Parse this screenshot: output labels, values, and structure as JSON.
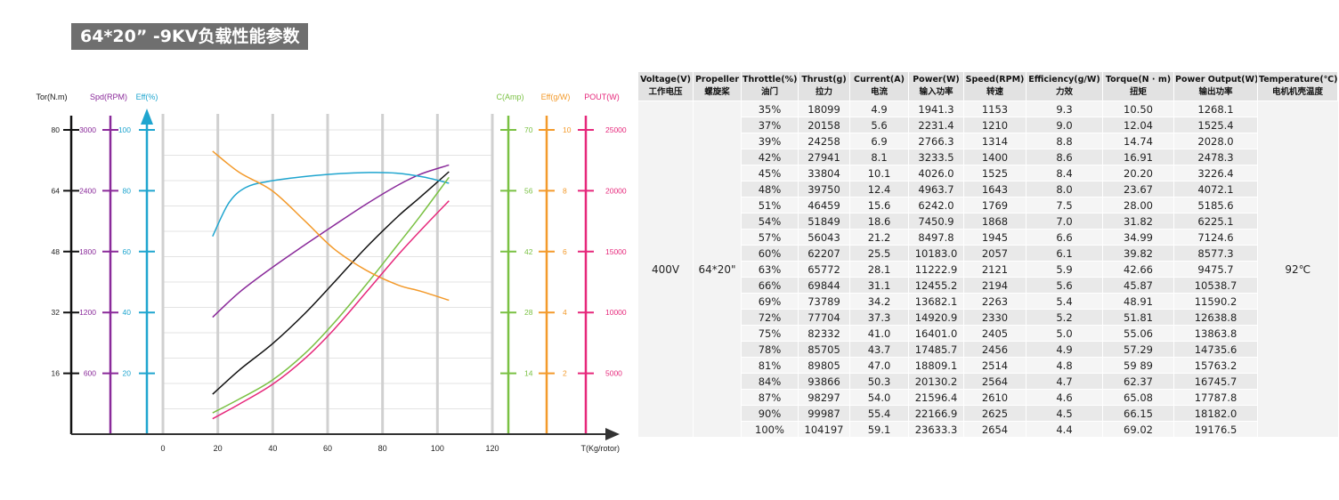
{
  "title": "64*20” -9KV负载性能参数",
  "chart_data": {
    "type": "line",
    "xlabel": "T(Kg/rotor)",
    "xlim": [
      0,
      120
    ],
    "x_ticks": [
      "0",
      "20",
      "40",
      "60",
      "80",
      "100",
      "120"
    ],
    "axes": [
      {
        "key": "tor",
        "label": "Tor(N.m)",
        "color": "#111111",
        "max": 80,
        "ticks": [
          "16",
          "32",
          "48",
          "64",
          "80"
        ]
      },
      {
        "key": "spd",
        "label": "Spd(RPM)",
        "color": "#8a2a9a",
        "max": 3000,
        "ticks": [
          "600",
          "1200",
          "1800",
          "2400",
          "3000"
        ]
      },
      {
        "key": "eff",
        "label": "Eff(%)",
        "color": "#1fa5cf",
        "max": 100,
        "ticks": [
          "20",
          "40",
          "60",
          "80",
          "100"
        ]
      },
      {
        "key": "amp",
        "label": "C(Amp)",
        "color": "#7ac143",
        "max": 70,
        "ticks": [
          "14",
          "28",
          "42",
          "56",
          "70"
        ]
      },
      {
        "key": "effg",
        "label": "Eff(g/W)",
        "color": "#f39a2b",
        "max": 10,
        "ticks": [
          "2",
          "4",
          "6",
          "8",
          "10"
        ]
      },
      {
        "key": "pout",
        "label": "POUT(W)",
        "color": "#e6287b",
        "max": 25000,
        "ticks": [
          "5000",
          "10000",
          "15000",
          "20000",
          "25000"
        ]
      }
    ],
    "series": [
      {
        "axis": "tor",
        "color": "#111111",
        "x": [
          18.1,
          27.9,
          39.8,
          51.8,
          62.2,
          73.8,
          85.7,
          93.9,
          104.2
        ],
        "y": [
          10.5,
          16.9,
          23.7,
          31.8,
          39.8,
          48.9,
          57.3,
          62.4,
          69.0
        ]
      },
      {
        "axis": "spd",
        "color": "#8a2a9a",
        "x": [
          18.1,
          27.9,
          39.8,
          51.8,
          62.2,
          73.8,
          85.7,
          93.9,
          104.2
        ],
        "y": [
          1153,
          1400,
          1643,
          1868,
          2057,
          2263,
          2456,
          2564,
          2654
        ]
      },
      {
        "axis": "eff",
        "color": "#1fa5cf",
        "x": [
          18.1,
          24,
          30,
          38,
          50,
          62,
          75,
          85,
          95,
          104.2
        ],
        "y": [
          65,
          76,
          81,
          83,
          84.5,
          85.5,
          86,
          85.8,
          84.5,
          82.5
        ]
      },
      {
        "axis": "amp",
        "color": "#7ac143",
        "x": [
          18.1,
          27.9,
          39.8,
          51.8,
          62.2,
          73.8,
          85.7,
          93.9,
          104.2
        ],
        "y": [
          4.9,
          8.1,
          12.4,
          18.6,
          25.5,
          34.2,
          43.7,
          50.3,
          59.1
        ]
      },
      {
        "axis": "effg",
        "color": "#f39a2b",
        "x": [
          18.1,
          27.9,
          39.8,
          51.8,
          62.2,
          73.8,
          85.7,
          93.9,
          104.2
        ],
        "y": [
          9.3,
          8.6,
          8.0,
          7.0,
          6.1,
          5.4,
          4.9,
          4.7,
          4.4
        ]
      },
      {
        "axis": "pout",
        "color": "#e6287b",
        "x": [
          18.1,
          27.9,
          39.8,
          51.8,
          62.2,
          73.8,
          85.7,
          93.9,
          104.2
        ],
        "y": [
          1268.1,
          2478.3,
          4072.1,
          6225.1,
          8577.3,
          11590.2,
          14735.6,
          16745.7,
          19176.5
        ]
      }
    ]
  },
  "table": {
    "headers": [
      {
        "en": "Voltage(V)",
        "cn": "工作电压"
      },
      {
        "en": "Propeller",
        "cn": "螺旋桨"
      },
      {
        "en": "Throttle(%)",
        "cn": "油门"
      },
      {
        "en": "Thrust(g)",
        "cn": "拉力"
      },
      {
        "en": "Current(A)",
        "cn": "电流"
      },
      {
        "en": "Power(W)",
        "cn": "输入功率"
      },
      {
        "en": "Speed(RPM)",
        "cn": "转速"
      },
      {
        "en": "Efficiency(g/W)",
        "cn": "力效"
      },
      {
        "en": "Torque(N · m)",
        "cn": "扭矩"
      },
      {
        "en": "Power Output(W)",
        "cn": "输出功率"
      },
      {
        "en": "Temperature(℃)",
        "cn": "电机机壳温度"
      }
    ],
    "voltage": "400V",
    "propeller": "64*20\"",
    "temperature": "92℃",
    "rows": [
      [
        "35%",
        "18099",
        "4.9",
        "1941.3",
        "1153",
        "9.3",
        "10.50",
        "1268.1"
      ],
      [
        "37%",
        "20158",
        "5.6",
        "2231.4",
        "1210",
        "9.0",
        "12.04",
        "1525.4"
      ],
      [
        "39%",
        "24258",
        "6.9",
        "2766.3",
        "1314",
        "8.8",
        "14.74",
        "2028.0"
      ],
      [
        "42%",
        "27941",
        "8.1",
        "3233.5",
        "1400",
        "8.6",
        "16.91",
        "2478.3"
      ],
      [
        "45%",
        "33804",
        "10.1",
        "4026.0",
        "1525",
        "8.4",
        "20.20",
        "3226.4"
      ],
      [
        "48%",
        "39750",
        "12.4",
        "4963.7",
        "1643",
        "8.0",
        "23.67",
        "4072.1"
      ],
      [
        "51%",
        "46459",
        "15.6",
        "6242.0",
        "1769",
        "7.5",
        "28.00",
        "5185.6"
      ],
      [
        "54%",
        "51849",
        "18.6",
        "7450.9",
        "1868",
        "7.0",
        "31.82",
        "6225.1"
      ],
      [
        "57%",
        "56043",
        "21.2",
        "8497.8",
        "1945",
        "6.6",
        "34.99",
        "7124.6"
      ],
      [
        "60%",
        "62207",
        "25.5",
        "10183.0",
        "2057",
        "6.1",
        "39.82",
        "8577.3"
      ],
      [
        "63%",
        "65772",
        "28.1",
        "11222.9",
        "2121",
        "5.9",
        "42.66",
        "9475.7"
      ],
      [
        "66%",
        "69844",
        "31.1",
        "12455.2",
        "2194",
        "5.6",
        "45.87",
        "10538.7"
      ],
      [
        "69%",
        "73789",
        "34.2",
        "13682.1",
        "2263",
        "5.4",
        "48.91",
        "11590.2"
      ],
      [
        "72%",
        "77704",
        "37.3",
        "14920.9",
        "2330",
        "5.2",
        "51.81",
        "12638.8"
      ],
      [
        "75%",
        "82332",
        "41.0",
        "16401.0",
        "2405",
        "5.0",
        "55.06",
        "13863.8"
      ],
      [
        "78%",
        "85705",
        "43.7",
        "17485.7",
        "2456",
        "4.9",
        "57.29",
        "14735.6"
      ],
      [
        "81%",
        "89805",
        "47.0",
        "18809.1",
        "2514",
        "4.8",
        "59 89",
        "15763.2"
      ],
      [
        "84%",
        "93866",
        "50.3",
        "20130.2",
        "2564",
        "4.7",
        "62.37",
        "16745.7"
      ],
      [
        "87%",
        "98297",
        "54.0",
        "21596.4",
        "2610",
        "4.6",
        "65.08",
        "17787.8"
      ],
      [
        "90%",
        "99987",
        "55.4",
        "22166.9",
        "2625",
        "4.5",
        "66.15",
        "18182.0"
      ],
      [
        "100%",
        "104197",
        "59.1",
        "23633.3",
        "2654",
        "4.4",
        "69.02",
        "19176.5"
      ]
    ]
  }
}
